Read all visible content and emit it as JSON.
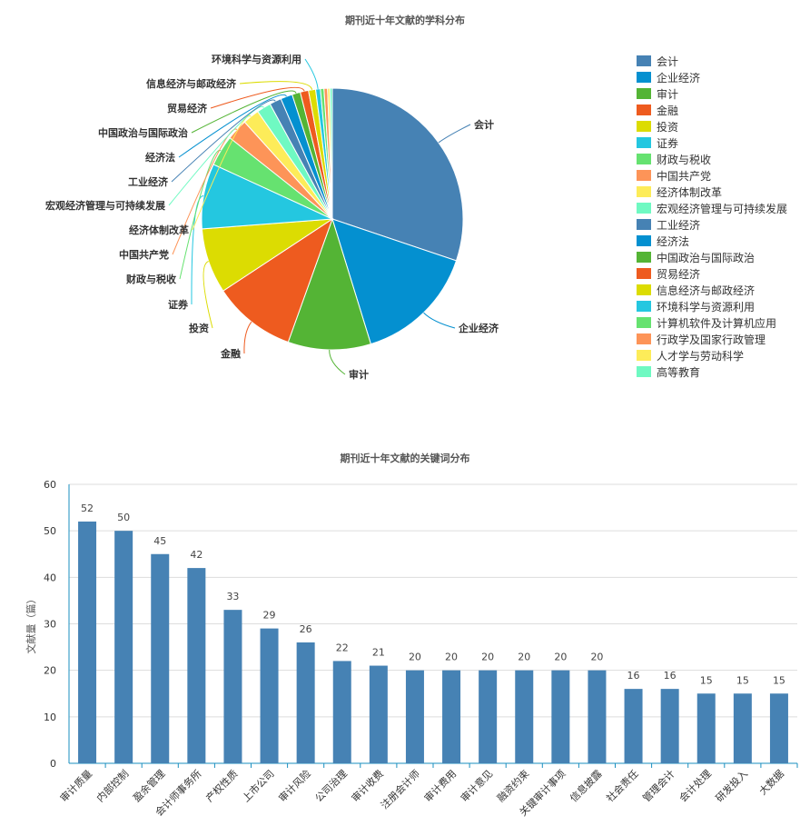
{
  "colors": {
    "palette": [
      "#4682B4",
      "#0490D0",
      "#54B435",
      "#EE5B1F",
      "#DCDC02",
      "#24C7E0",
      "#66E270",
      "#FD9458",
      "#FDEC59",
      "#6FF9C2"
    ],
    "bar": "#4682B4"
  },
  "chart_data": [
    {
      "type": "pie",
      "title": "期刊近十年文献的学科分布",
      "legend_position": "right",
      "categories": [
        "会计",
        "企业经济",
        "审计",
        "金融",
        "投资",
        "证券",
        "财政与税收",
        "中国共产党",
        "经济体制改革",
        "宏观经济管理与可持续发展",
        "工业经济",
        "经济法",
        "中国政治与国际政治",
        "贸易经济",
        "信息经济与邮政经济",
        "环境科学与资源利用",
        "计算机软件及计算机应用",
        "行政学及国家行政管理",
        "人才学与劳动科学",
        "高等教育"
      ],
      "values": [
        206,
        103,
        70,
        70,
        55,
        55,
        26,
        18,
        14,
        12,
        10,
        10,
        7,
        7,
        6,
        4,
        3,
        3,
        2,
        2
      ],
      "labeled_slices": 16
    },
    {
      "type": "bar",
      "title": "期刊近十年文献的关键词分布",
      "ylabel": "文献量（篇）",
      "ylim": [
        0,
        60
      ],
      "yticks": [
        0,
        10,
        20,
        30,
        40,
        50,
        60
      ],
      "grid": true,
      "categories": [
        "审计质量",
        "内部控制",
        "盈余管理",
        "会计师事务所",
        "产权性质",
        "上市公司",
        "审计风险",
        "公司治理",
        "审计收费",
        "注册会计师",
        "审计费用",
        "审计意见",
        "融资约束",
        "关键审计事项",
        "信息披露",
        "社会责任",
        "管理会计",
        "会计处理",
        "研发投入",
        "大数据"
      ],
      "values": [
        52,
        50,
        45,
        42,
        33,
        29,
        26,
        22,
        21,
        20,
        20,
        20,
        20,
        20,
        20,
        16,
        16,
        15,
        15,
        15
      ]
    }
  ]
}
